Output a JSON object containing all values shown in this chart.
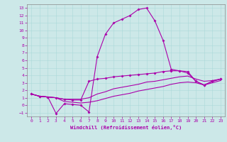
{
  "xlabel": "Windchill (Refroidissement éolien,°C)",
  "ylabel": "",
  "background_color": "#cce8e8",
  "line_color": "#aa00aa",
  "xlim": [
    -0.5,
    23.5
  ],
  "ylim": [
    -1.5,
    13.5
  ],
  "xticks": [
    0,
    1,
    2,
    3,
    4,
    5,
    6,
    7,
    8,
    9,
    10,
    11,
    12,
    13,
    14,
    15,
    16,
    17,
    18,
    19,
    20,
    21,
    22,
    23
  ],
  "yticks": [
    -1,
    0,
    1,
    2,
    3,
    4,
    5,
    6,
    7,
    8,
    9,
    10,
    11,
    12,
    13
  ],
  "series": [
    {
      "y": [
        1.5,
        1.2,
        1.1,
        -1.1,
        0.2,
        0.1,
        0.0,
        -0.9,
        6.5,
        9.5,
        11.0,
        11.5,
        12.0,
        12.8,
        13.0,
        11.3,
        8.7,
        4.8,
        4.6,
        4.3,
        3.2,
        2.7,
        3.2,
        3.5
      ],
      "marker": true
    },
    {
      "y": [
        1.5,
        1.2,
        1.1,
        1.0,
        0.8,
        0.7,
        0.7,
        3.2,
        3.5,
        3.6,
        3.8,
        3.9,
        4.0,
        4.1,
        4.2,
        4.3,
        4.5,
        4.6,
        4.6,
        4.5,
        3.2,
        2.7,
        3.2,
        3.5
      ],
      "marker": true
    },
    {
      "y": [
        1.5,
        1.2,
        1.1,
        1.0,
        0.8,
        0.8,
        0.8,
        1.0,
        1.5,
        1.8,
        2.2,
        2.4,
        2.6,
        2.8,
        3.1,
        3.2,
        3.4,
        3.6,
        3.8,
        3.9,
        3.5,
        3.2,
        3.3,
        3.5
      ],
      "marker": false
    },
    {
      "y": [
        1.5,
        1.2,
        1.1,
        1.0,
        0.5,
        0.4,
        0.3,
        0.4,
        0.6,
        0.9,
        1.2,
        1.4,
        1.6,
        1.9,
        2.1,
        2.3,
        2.5,
        2.8,
        3.0,
        3.1,
        3.0,
        2.7,
        3.0,
        3.3
      ],
      "marker": false
    }
  ]
}
